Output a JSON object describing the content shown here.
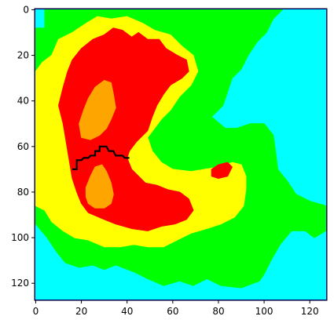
{
  "chart_data": {
    "type": "heatmap",
    "title": "",
    "xlabel": "",
    "ylabel": "",
    "xlim": [
      0,
      127
    ],
    "ylim": [
      127,
      0
    ],
    "xticks": [
      "0",
      "20",
      "40",
      "60",
      "80",
      "100",
      "120"
    ],
    "yticks": [
      "0",
      "20",
      "40",
      "60",
      "80",
      "100",
      "120"
    ],
    "grid": false,
    "colors": {
      "level_0": "#0000ff",
      "level_1": "#00ffff",
      "level_2": "#00ff00",
      "level_3": "#ffff00",
      "level_4": "#ff0000",
      "level_5": "#ffa500",
      "path": "#000000",
      "frame": "#000000"
    },
    "regions": [
      {
        "level": 0,
        "polygons": [
          [
            [
              0,
              121
            ],
            [
              8,
              121
            ],
            [
              14,
              125
            ],
            [
              18,
              127
            ],
            [
              0,
              127
            ]
          ],
          [
            [
              104,
              24
            ],
            [
              110,
              17
            ],
            [
              118,
              13
            ],
            [
              127,
              7
            ],
            [
              127,
              34
            ],
            [
              118,
              34
            ],
            [
              110,
              30
            ]
          ],
          [
            [
              116,
              86
            ],
            [
              127,
              82
            ],
            [
              127,
              99
            ],
            [
              118,
              94
            ]
          ],
          [
            [
              112,
              0
            ],
            [
              118,
              0
            ],
            [
              118,
              6
            ]
          ],
          [
            [
              91,
              125
            ],
            [
              104,
              125
            ],
            [
              104,
              127
            ],
            [
              91,
              127
            ]
          ]
        ]
      },
      {
        "level": 1,
        "polygons": [
          [
            [
              0,
              94
            ],
            [
              5,
              100
            ],
            [
              9,
              106
            ],
            [
              13,
              111
            ],
            [
              19,
              113
            ],
            [
              25,
              112
            ],
            [
              30,
              114
            ],
            [
              35,
              112
            ],
            [
              43,
              115
            ],
            [
              49,
              118
            ],
            [
              56,
              121
            ],
            [
              63,
              119
            ],
            [
              69,
              121
            ],
            [
              75,
              118
            ],
            [
              81,
              121
            ],
            [
              90,
              122
            ],
            [
              98,
              119
            ],
            [
              100,
              116
            ],
            [
              103,
              110
            ],
            [
              107,
              103
            ],
            [
              112,
              97
            ],
            [
              118,
              97
            ],
            [
              122,
              100
            ],
            [
              127,
              97
            ],
            [
              127,
              127
            ],
            [
              0,
              127
            ]
          ],
          [
            [
              0,
              0
            ],
            [
              4,
              0
            ],
            [
              4,
              8
            ],
            [
              0,
              8
            ]
          ],
          [
            [
              77,
              47
            ],
            [
              82,
              42
            ],
            [
              84,
              36
            ],
            [
              86,
              30
            ],
            [
              90,
              26
            ],
            [
              93,
              20
            ],
            [
              97,
              14
            ],
            [
              101,
              10
            ],
            [
              104,
              4
            ],
            [
              108,
              0
            ],
            [
              127,
              0
            ],
            [
              127,
              86
            ],
            [
              120,
              84
            ],
            [
              114,
              81
            ],
            [
              110,
              75
            ],
            [
              106,
              70
            ],
            [
              105,
              62
            ],
            [
              104,
              55
            ],
            [
              100,
              50
            ],
            [
              94,
              50
            ],
            [
              88,
              52
            ],
            [
              83,
              52
            ]
          ]
        ]
      },
      {
        "level": 2,
        "polygons": [
          [
            [
              0,
              8
            ],
            [
              4,
              8
            ],
            [
              4,
              0
            ],
            [
              108,
              0
            ],
            [
              104,
              4
            ],
            [
              101,
              10
            ],
            [
              97,
              14
            ],
            [
              93,
              20
            ],
            [
              90,
              26
            ],
            [
              86,
              30
            ],
            [
              84,
              36
            ],
            [
              82,
              42
            ],
            [
              77,
              47
            ],
            [
              83,
              52
            ],
            [
              88,
              52
            ],
            [
              94,
              50
            ],
            [
              100,
              50
            ],
            [
              104,
              55
            ],
            [
              105,
              62
            ],
            [
              106,
              70
            ],
            [
              110,
              75
            ],
            [
              114,
              81
            ],
            [
              120,
              84
            ],
            [
              127,
              86
            ],
            [
              127,
              97
            ],
            [
              122,
              100
            ],
            [
              118,
              97
            ],
            [
              112,
              97
            ],
            [
              107,
              103
            ],
            [
              103,
              110
            ],
            [
              100,
              116
            ],
            [
              98,
              119
            ],
            [
              90,
              122
            ],
            [
              81,
              121
            ],
            [
              75,
              118
            ],
            [
              69,
              121
            ],
            [
              63,
              119
            ],
            [
              56,
              121
            ],
            [
              49,
              118
            ],
            [
              43,
              115
            ],
            [
              35,
              112
            ],
            [
              30,
              114
            ],
            [
              25,
              112
            ],
            [
              19,
              113
            ],
            [
              13,
              111
            ],
            [
              9,
              106
            ],
            [
              5,
              100
            ],
            [
              0,
              94
            ]
          ]
        ]
      },
      {
        "level": 3,
        "polygons": [
          [
            [
              0,
              27
            ],
            [
              3,
              23
            ],
            [
              7,
              20
            ],
            [
              10,
              13
            ],
            [
              16,
              10
            ],
            [
              22,
              6
            ],
            [
              27,
              3
            ],
            [
              33,
              4
            ],
            [
              40,
              3
            ],
            [
              47,
              6
            ],
            [
              52,
              9
            ],
            [
              59,
              11
            ],
            [
              64,
              16
            ],
            [
              69,
              20
            ],
            [
              71,
              27
            ],
            [
              68,
              33
            ],
            [
              63,
              38
            ],
            [
              59,
              44
            ],
            [
              55,
              48
            ],
            [
              52,
              52
            ],
            [
              49,
              56
            ],
            [
              51,
              62
            ],
            [
              55,
              67
            ],
            [
              60,
              70
            ],
            [
              68,
              71
            ],
            [
              74,
              70
            ],
            [
              80,
              69
            ],
            [
              86,
              67
            ],
            [
              90,
              68
            ],
            [
              92,
              73
            ],
            [
              92,
              79
            ],
            [
              91,
              86
            ],
            [
              87,
              91
            ],
            [
              81,
              94
            ],
            [
              75,
              96
            ],
            [
              68,
              98
            ],
            [
              62,
              101
            ],
            [
              56,
              104
            ],
            [
              49,
              104
            ],
            [
              43,
              103
            ],
            [
              37,
              104
            ],
            [
              30,
              104
            ],
            [
              23,
              101
            ],
            [
              17,
              100
            ],
            [
              12,
              97
            ],
            [
              7,
              93
            ],
            [
              4,
              88
            ],
            [
              0,
              86
            ]
          ]
        ]
      },
      {
        "level": 4,
        "polygons": [
          [
            [
              10,
              42
            ],
            [
              12,
              34
            ],
            [
              14,
              27
            ],
            [
              16,
              22
            ],
            [
              20,
              17
            ],
            [
              25,
              13
            ],
            [
              30,
              11
            ],
            [
              34,
              8
            ],
            [
              38,
              9
            ],
            [
              42,
              12
            ],
            [
              45,
              10
            ],
            [
              49,
              13
            ],
            [
              54,
              13
            ],
            [
              57,
              17
            ],
            [
              62,
              20
            ],
            [
              66,
              22
            ],
            [
              67,
              27
            ],
            [
              64,
              30
            ],
            [
              59,
              33
            ],
            [
              56,
              37
            ],
            [
              53,
              42
            ],
            [
              51,
              47
            ],
            [
              49,
              53
            ],
            [
              44,
              58
            ],
            [
              41,
              62
            ],
            [
              40,
              65
            ],
            [
              42,
              70
            ],
            [
              45,
              73
            ],
            [
              48,
              76
            ],
            [
              53,
              77
            ],
            [
              58,
              79
            ],
            [
              63,
              80
            ],
            [
              67,
              83
            ],
            [
              69,
              88
            ],
            [
              66,
              92
            ],
            [
              61,
              94
            ],
            [
              55,
              95
            ],
            [
              49,
              97
            ],
            [
              42,
              96
            ],
            [
              35,
              94
            ],
            [
              30,
              92
            ],
            [
              23,
              89
            ],
            [
              20,
              85
            ],
            [
              18,
              80
            ],
            [
              16,
              74
            ],
            [
              15,
              68
            ],
            [
              14,
              62
            ],
            [
              13,
              56
            ],
            [
              12,
              50
            ]
          ],
          [
            [
              77,
              70
            ],
            [
              80,
              68
            ],
            [
              84,
              67
            ],
            [
              86,
              69
            ],
            [
              84,
              73
            ],
            [
              80,
              74
            ],
            [
              77,
              73
            ]
          ]
        ]
      },
      {
        "level": 5,
        "polygons": [
          [
            [
              19,
              50
            ],
            [
              21,
              44
            ],
            [
              23,
              39
            ],
            [
              26,
              34
            ],
            [
              30,
              31
            ],
            [
              33,
              32
            ],
            [
              34,
              37
            ],
            [
              35,
              43
            ],
            [
              33,
              48
            ],
            [
              31,
              52
            ],
            [
              28,
              55
            ],
            [
              24,
              57
            ],
            [
              20,
              56
            ]
          ],
          [
            [
              22,
              78
            ],
            [
              24,
              73
            ],
            [
              26,
              69
            ],
            [
              29,
              68
            ],
            [
              31,
              71
            ],
            [
              33,
              76
            ],
            [
              34,
              81
            ],
            [
              33,
              85
            ],
            [
              30,
              87
            ],
            [
              26,
              87
            ],
            [
              23,
              85
            ],
            [
              22,
              82
            ]
          ]
        ]
      }
    ],
    "path": [
      [
        16,
        70
      ],
      [
        18,
        70
      ],
      [
        18,
        66
      ],
      [
        20,
        66
      ],
      [
        21,
        65
      ],
      [
        23,
        65
      ],
      [
        24,
        64
      ],
      [
        26,
        64
      ],
      [
        26,
        62
      ],
      [
        28,
        62
      ],
      [
        28,
        60
      ],
      [
        31,
        60
      ],
      [
        32,
        62
      ],
      [
        34,
        62
      ],
      [
        35,
        64
      ],
      [
        38,
        64
      ],
      [
        39,
        65
      ],
      [
        41,
        65
      ]
    ]
  }
}
